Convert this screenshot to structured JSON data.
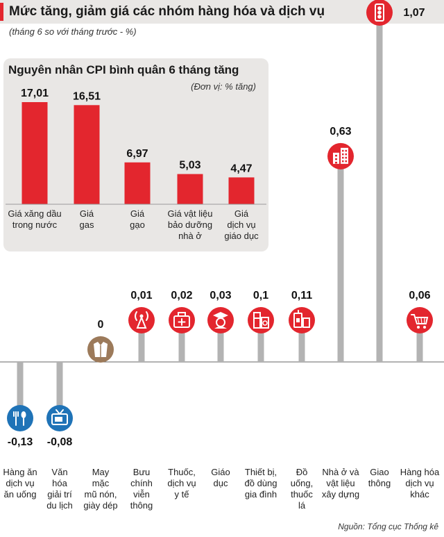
{
  "title": "Mức tăng, giảm giá các nhóm hàng hóa và dịch vụ",
  "subtitle": "(tháng 6 so với tháng trước - %)",
  "source": "Nguồn: Tổng cục Thống kê",
  "colors": {
    "accent": "#e3262e",
    "stem": "#b3b3b3",
    "neutral": "#9c7a5a",
    "negative": "#1f73b7",
    "panel": "#e9e7e5"
  },
  "chart_data": [
    {
      "type": "lollipop",
      "title": "Mức tăng, giảm giá các nhóm hàng hóa và dịch vụ",
      "subtitle": "(tháng 6 so với tháng trước - %)",
      "unit": "%",
      "baseline": 0,
      "ylim": [
        -0.16,
        1.07
      ],
      "categories": [
        {
          "lines": [
            "Hàng ăn",
            "dịch vụ",
            "ăn uống"
          ],
          "value": -0.13,
          "label": "-0,13",
          "icon": "fork-spoon-icon"
        },
        {
          "lines": [
            "Văn",
            "hóa",
            "giải trí",
            "du lịch"
          ],
          "value": -0.08,
          "label": "-0,08",
          "icon": "tv-icon"
        },
        {
          "lines": [
            "May",
            "mặc",
            "mũ nón,",
            "giày dép"
          ],
          "value": 0,
          "label": "0",
          "icon": "clothing-icon"
        },
        {
          "lines": [
            "Bưu",
            "chính",
            "viễn",
            "thông"
          ],
          "value": 0.01,
          "label": "0,01",
          "icon": "antenna-icon"
        },
        {
          "lines": [
            "Thuốc,",
            "dịch vụ",
            "y tế"
          ],
          "value": 0.02,
          "label": "0,02",
          "icon": "medical-bag-icon"
        },
        {
          "lines": [
            "Giáo",
            "dục"
          ],
          "value": 0.03,
          "label": "0,03",
          "icon": "graduate-icon"
        },
        {
          "lines": [
            "Thiết bị,",
            "đồ dùng",
            "gia đình"
          ],
          "value": 0.1,
          "label": "0,1",
          "icon": "appliance-icon"
        },
        {
          "lines": [
            "Đồ",
            "uống,",
            "thuốc",
            "lá"
          ],
          "value": 0.11,
          "label": "0,11",
          "icon": "drink-icon"
        },
        {
          "lines": [
            "Nhà ở và",
            "vật liệu",
            "xây dựng"
          ],
          "value": 0.63,
          "label": "0,63",
          "icon": "building-icon"
        },
        {
          "lines": [
            "Giao",
            "thông"
          ],
          "value": 1.07,
          "label": "1,07",
          "icon": "traffic-light-icon"
        },
        {
          "lines": [
            "Hàng hóa",
            "dịch vụ",
            "khác"
          ],
          "value": 0.06,
          "label": "0,06",
          "icon": "shopping-cart-icon"
        }
      ]
    },
    {
      "type": "bar",
      "title": "Nguyên nhân CPI bình quân 6 tháng tăng",
      "unit_label": "(Đơn vị: % tăng)",
      "ylim": [
        0,
        17.01
      ],
      "categories": [
        {
          "lines": [
            "Giá xăng dầu",
            "trong nước"
          ],
          "value": 17.01,
          "label": "17,01"
        },
        {
          "lines": [
            "Giá",
            "gas"
          ],
          "value": 16.51,
          "label": "16,51"
        },
        {
          "lines": [
            "Giá",
            "gạo"
          ],
          "value": 6.97,
          "label": "6,97"
        },
        {
          "lines": [
            "Giá vật liệu",
            "bảo dưỡng",
            "nhà ở"
          ],
          "value": 5.03,
          "label": "5,03"
        },
        {
          "lines": [
            "Giá",
            "dịch vụ",
            "giáo dục"
          ],
          "value": 4.47,
          "label": "4,47"
        }
      ]
    }
  ]
}
